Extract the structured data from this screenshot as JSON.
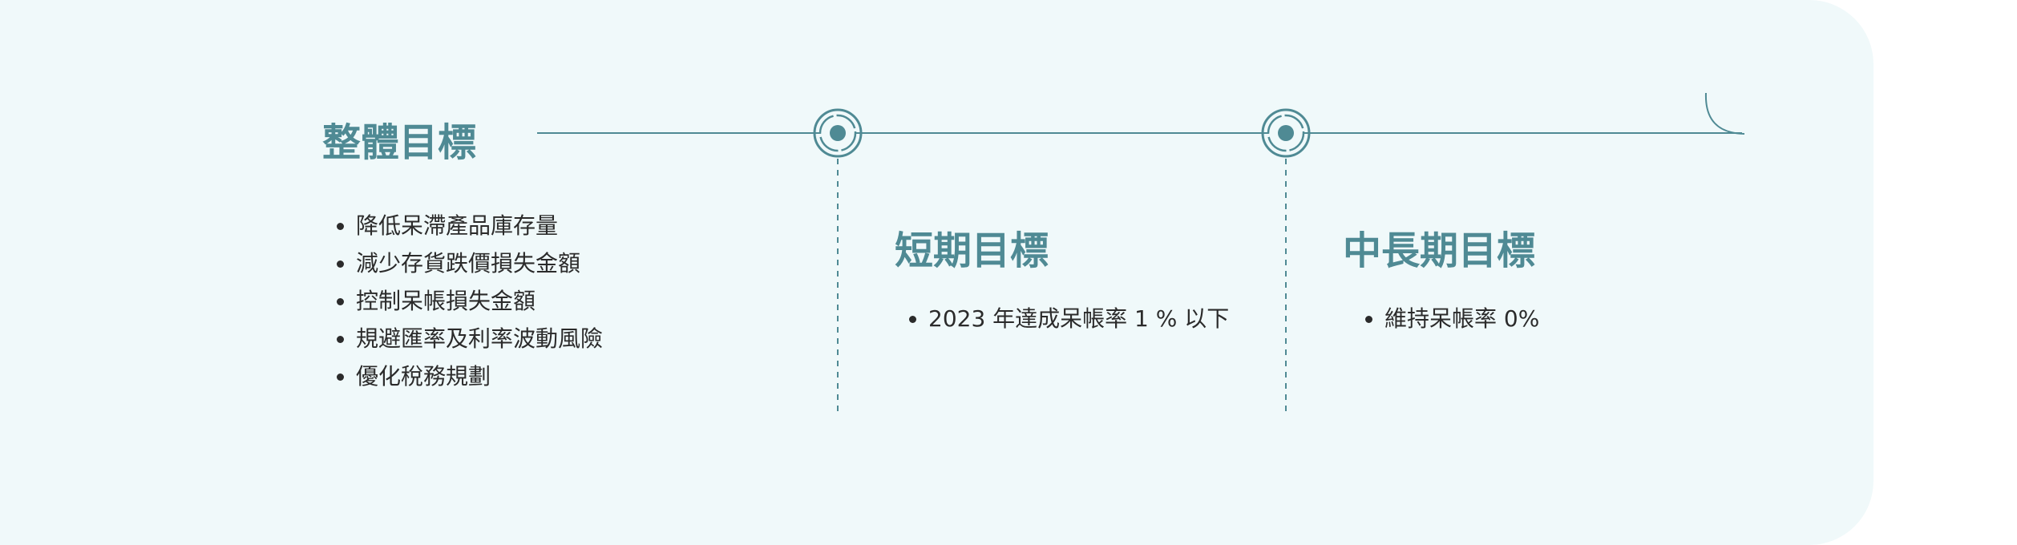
{
  "colors": {
    "panel_bg": "#f0f9fa",
    "accent": "#4f8a94",
    "text": "#2b2b2b"
  },
  "sections": [
    {
      "title": "整體目標",
      "items": [
        "降低呆滯產品庫存量",
        "減少存貨跌價損失金額",
        "控制呆帳損失金額",
        "規避匯率及利率波動風險",
        "優化稅務規劃"
      ]
    },
    {
      "title": "短期目標",
      "items": [
        "2023 年達成呆帳率 1 % 以下"
      ]
    },
    {
      "title": "中長期目標",
      "items": [
        "維持呆帳率 0%"
      ]
    }
  ]
}
